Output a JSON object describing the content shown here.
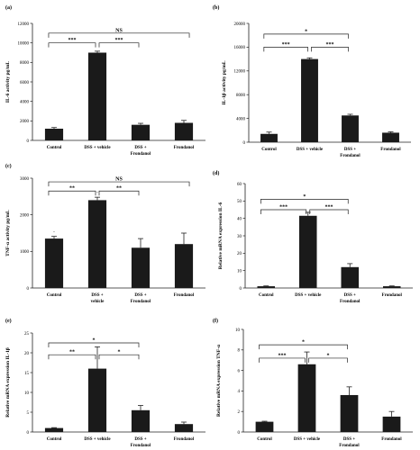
{
  "figure": {
    "background": "#ffffff",
    "bar_color": "#1a1a1a"
  },
  "chart_data": [
    {
      "id": "a",
      "type": "bar",
      "panel_label": "(a)",
      "ylabel": "IL-6 activity pg/mL",
      "ylim": [
        0,
        12000
      ],
      "yticks": [
        0,
        2000,
        4000,
        6000,
        8000,
        10000,
        12000
      ],
      "categories": [
        "Control",
        "DSS + vehicle",
        "DSS + Frondanol",
        "Frondanol"
      ],
      "category_lines": [
        [
          "Control"
        ],
        [
          "DSS + vehicle"
        ],
        [
          "DSS +",
          "Frondanol"
        ],
        [
          "Frondanol"
        ]
      ],
      "values": [
        1200,
        9000,
        1600,
        1800
      ],
      "errors": [
        120,
        150,
        150,
        250
      ],
      "brackets": [
        {
          "from": 0,
          "to": 1,
          "level": 10000,
          "label": "***"
        },
        {
          "from": 1,
          "to": 2,
          "level": 10000,
          "label": "***"
        },
        {
          "from": 0,
          "to": 3,
          "level": 11000,
          "label": "NS"
        }
      ],
      "bar_marks": []
    },
    {
      "id": "b",
      "type": "bar",
      "panel_label": "(b)",
      "ylabel": "IL-1β activity pg/mL",
      "ylim": [
        0,
        20000
      ],
      "yticks": [
        0,
        4000,
        8000,
        12000,
        16000,
        20000
      ],
      "categories": [
        "Control",
        "DSS + vehicle",
        "DSS + Frondanol",
        "Frondanol"
      ],
      "category_lines": [
        [
          "Control"
        ],
        [
          "DSS + vehicle"
        ],
        [
          "DSS +",
          "Frondanol"
        ],
        [
          "Frondanol"
        ]
      ],
      "values": [
        1400,
        14000,
        4500,
        1600
      ],
      "errors": [
        300,
        200,
        200,
        150
      ],
      "brackets": [
        {
          "from": 0,
          "to": 1,
          "level": 16000,
          "label": "***"
        },
        {
          "from": 1,
          "to": 2,
          "level": 16000,
          "label": "***"
        },
        {
          "from": 0,
          "to": 2,
          "level": 18200,
          "label": "*"
        }
      ],
      "bar_marks": []
    },
    {
      "id": "c",
      "type": "bar",
      "panel_label": "(c)",
      "ylabel": "TNF-α activity pg/mL",
      "ylim": [
        0,
        3000
      ],
      "yticks": [
        0,
        1000,
        2000,
        3000
      ],
      "categories": [
        "Control",
        "DSS + vehicle",
        "DSS + Frondanol",
        "Frondanol"
      ],
      "category_lines": [
        [
          "Control"
        ],
        [
          "DSS +",
          "vehicle"
        ],
        [
          "DSS +",
          "Frondanol"
        ],
        [
          "Frondanol"
        ]
      ],
      "values": [
        1350,
        2400,
        1100,
        1200
      ],
      "errors": [
        60,
        80,
        250,
        300
      ],
      "brackets": [
        {
          "from": 0,
          "to": 1,
          "level": 2650,
          "label": "**"
        },
        {
          "from": 1,
          "to": 2,
          "level": 2650,
          "label": "**"
        },
        {
          "from": 0,
          "to": 3,
          "level": 2900,
          "label": "NS"
        }
      ],
      "bar_marks": [
        {
          "index": 0,
          "label": "-"
        },
        {
          "index": 1,
          "label": "-"
        }
      ]
    },
    {
      "id": "d",
      "type": "bar",
      "panel_label": "(d)",
      "ylabel": "Relative mRNA expression IL-6",
      "ylim": [
        0,
        60
      ],
      "yticks": [
        0,
        10,
        20,
        30,
        40,
        50,
        60
      ],
      "categories": [
        "Control",
        "DSS + vehicle",
        "DSS + Frondanol",
        "Frondanol"
      ],
      "category_lines": [
        [
          "Control"
        ],
        [
          "DSS + vehicle"
        ],
        [
          "DSS +",
          "Frondanol"
        ],
        [
          "Frondanol"
        ]
      ],
      "values": [
        1,
        41.5,
        12,
        1
      ],
      "errors": [
        0.2,
        2,
        2,
        0.2
      ],
      "brackets": [
        {
          "from": 0,
          "to": 1,
          "level": 45,
          "label": "***"
        },
        {
          "from": 1,
          "to": 2,
          "level": 45,
          "label": "***"
        },
        {
          "from": 0,
          "to": 2,
          "level": 51,
          "label": "*"
        }
      ],
      "bar_marks": []
    },
    {
      "id": "e",
      "type": "bar",
      "panel_label": "(e)",
      "ylabel": "Relative mRNA expression IL-1β",
      "ylim": [
        0,
        25
      ],
      "yticks": [
        0,
        5,
        10,
        15,
        20,
        25
      ],
      "categories": [
        "Control",
        "DSS + vehicle",
        "DSS + Frondanol",
        "Frondanol"
      ],
      "category_lines": [
        [
          "Control"
        ],
        [
          "DSS + vehicle"
        ],
        [
          "DSS +",
          "Frondanol"
        ],
        [
          "Frondanol"
        ]
      ],
      "values": [
        1,
        16,
        5.5,
        2
      ],
      "errors": [
        0.1,
        5.5,
        1.2,
        0.5
      ],
      "brackets": [
        {
          "from": 0,
          "to": 1,
          "level": 19.5,
          "label": "**"
        },
        {
          "from": 1,
          "to": 2,
          "level": 19.5,
          "label": "*"
        },
        {
          "from": 0,
          "to": 2,
          "level": 22.5,
          "label": "*"
        }
      ],
      "bar_marks": []
    },
    {
      "id": "f",
      "type": "bar",
      "panel_label": "(f)",
      "ylabel": "Relative mRNA expression TNF-α",
      "ylim": [
        0,
        10
      ],
      "yticks": [
        0,
        2,
        4,
        6,
        8,
        10
      ],
      "categories": [
        "Control",
        "DSS + vehicle",
        "DSS + Frondanol",
        "Frondanol"
      ],
      "category_lines": [
        [
          "Control"
        ],
        [
          "DSS + vehicle"
        ],
        [
          "DSS +",
          "Frondanol"
        ],
        [
          "Frondanol"
        ]
      ],
      "values": [
        1,
        6.6,
        3.6,
        1.5
      ],
      "errors": [
        0.05,
        1.2,
        0.8,
        0.5
      ],
      "brackets": [
        {
          "from": 0,
          "to": 1,
          "level": 7.2,
          "label": "***"
        },
        {
          "from": 1,
          "to": 2,
          "level": 7.2,
          "label": "*"
        },
        {
          "from": 0,
          "to": 2,
          "level": 8.5,
          "label": "*"
        }
      ],
      "bar_marks": []
    }
  ]
}
